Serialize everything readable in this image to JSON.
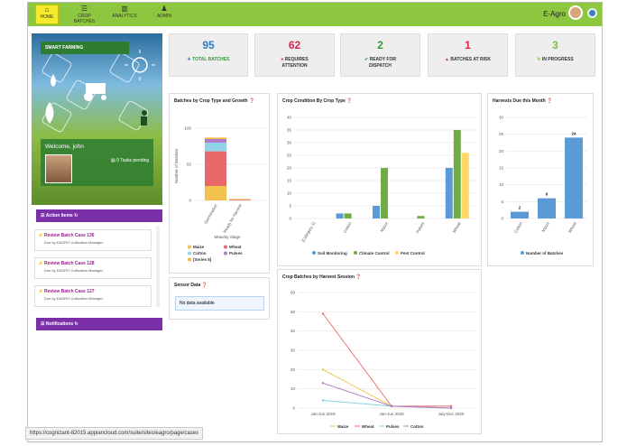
{
  "nav": {
    "items": [
      {
        "label": "HOME",
        "icon": "home-icon",
        "glyph": "⌂"
      },
      {
        "label": "CROP BATCHES",
        "icon": "list-icon",
        "glyph": "☰"
      },
      {
        "label": "ANALYTICS",
        "icon": "analytics-icon",
        "glyph": "▥"
      },
      {
        "label": "ADMIN",
        "icon": "admin-icon",
        "glyph": "♟"
      }
    ],
    "active": "HOME",
    "brand": "E-Agro"
  },
  "sidebar": {
    "banner": "SMART FARMING",
    "welcome": "Welcome, john",
    "tasks": "0 Tasks pending"
  },
  "kpis": [
    {
      "value": "95",
      "label": "TOTAL BATCHES",
      "icon": "✈",
      "color": "#2e7bbf",
      "label_color": "#2e9a3a"
    },
    {
      "value": "62",
      "label": "REQUIRES\nATTENTION",
      "icon": "●",
      "color": "#d6264a",
      "label_color": "#333"
    },
    {
      "value": "2",
      "label": "READY FOR\nDISPATCH",
      "icon": "✔",
      "color": "#2e9a3a",
      "label_color": "#333"
    },
    {
      "value": "1",
      "label": "BATCHES AT RISK",
      "icon": "▲",
      "color": "#d6264a",
      "label_color": "#333"
    },
    {
      "value": "3",
      "label": "IN PROGRESS",
      "icon": "↻",
      "color": "#7fbf3f",
      "label_color": "#333"
    }
  ],
  "action_items": {
    "title": "Action Items",
    "items": [
      {
        "title": "Review Batch Case 136",
        "sub": "Due by EAGRO Cultivation Manager"
      },
      {
        "title": "Review Batch Case 128",
        "sub": "Due by EAGRO Cultivation Manager"
      },
      {
        "title": "Review Batch Case 127",
        "sub": "Due by EAGRO Cultivation Manager"
      }
    ]
  },
  "notifications": {
    "title": "Notifications"
  },
  "sensor": {
    "title": "Sensor Data",
    "empty": "No data available"
  },
  "url": "https://cognizant-82015.appiancloud.com/suite/sites/eagro/page/cases",
  "chart_data": [
    {
      "type": "bar",
      "stacked": true,
      "title": "Batches by Crop Type and Growth",
      "xlabel": "Maturity Stage",
      "ylabel": "Number of Batches",
      "categories": [
        "Germination",
        "Ready for Harvest"
      ],
      "ylim": [
        0,
        100
      ],
      "yticks": [
        0,
        50,
        100
      ],
      "series": [
        {
          "name": "Maize",
          "color": "#f2c14e",
          "values": [
            20,
            0
          ]
        },
        {
          "name": "Wheat",
          "color": "#e76a6a",
          "values": [
            48,
            1
          ]
        },
        {
          "name": "Cotton",
          "color": "#8fd3e8",
          "values": [
            12,
            0
          ]
        },
        {
          "name": "Pulses",
          "color": "#b07cc6",
          "values": [
            5,
            0
          ]
        },
        {
          "name": "[Series 5]",
          "color": "#f5b942",
          "values": [
            2,
            1
          ]
        }
      ]
    },
    {
      "type": "bar",
      "title": "Crop Condition By Crop Type",
      "categories": [
        "[Category 1]",
        "Cotton",
        "Maize",
        "Pulses",
        "Wheat"
      ],
      "ylim": [
        0,
        40
      ],
      "yticks": [
        0,
        5,
        10,
        15,
        20,
        25,
        30,
        35,
        40
      ],
      "series": [
        {
          "name": "Soil Monitoring",
          "color": "#5b9bd5",
          "values": [
            0,
            2,
            5,
            0,
            20
          ]
        },
        {
          "name": "Climate Control",
          "color": "#70ad47",
          "values": [
            0,
            2,
            20,
            1,
            35
          ]
        },
        {
          "name": "Pest Control",
          "color": "#ffd966",
          "values": [
            0,
            0,
            0,
            0,
            26
          ]
        }
      ]
    },
    {
      "type": "bar",
      "title": "Harvests Due this Month",
      "categories": [
        "Cotton",
        "Maize",
        "Wheat"
      ],
      "ylim": [
        0,
        30
      ],
      "yticks": [
        0,
        5,
        10,
        15,
        20,
        25,
        30
      ],
      "series": [
        {
          "name": "Number of Batches",
          "color": "#5b9bd5",
          "values": [
            2,
            6,
            24
          ]
        }
      ]
    },
    {
      "type": "line",
      "title": "Crop Batches by Harvest Session",
      "categories": [
        "Jan-Jun 2019",
        "Jan-Jun 2020",
        "July-Dec 2020"
      ],
      "ylim": [
        0,
        60
      ],
      "yticks": [
        0,
        10,
        20,
        30,
        40,
        50,
        60
      ],
      "series": [
        {
          "name": "Maize",
          "color": "#f2c14e",
          "values": [
            20,
            1,
            0
          ]
        },
        {
          "name": "Wheat",
          "color": "#e76a6a",
          "values": [
            49,
            1,
            1
          ]
        },
        {
          "name": "Pulses",
          "color": "#7fd0e0",
          "values": [
            4,
            1,
            0
          ]
        },
        {
          "name": "Cotton",
          "color": "#b07cc6",
          "values": [
            13,
            1,
            0
          ]
        }
      ]
    }
  ]
}
